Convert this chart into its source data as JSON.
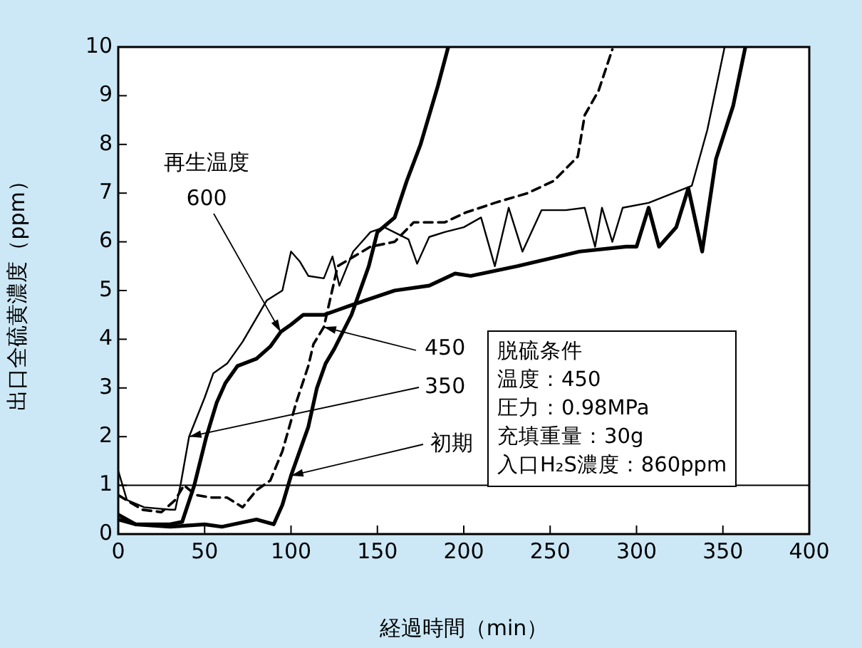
{
  "chart_data": {
    "type": "line",
    "xlabel": "経過時間（min）",
    "ylabel": "出口全硫黄濃度（ppm）",
    "xlim": [
      0,
      400
    ],
    "xticks": [
      0,
      50,
      100,
      150,
      200,
      250,
      300,
      350,
      400
    ],
    "ylim": [
      0,
      10
    ],
    "yticks": [
      0,
      1,
      2,
      3,
      4,
      5,
      6,
      7,
      8,
      9,
      10
    ],
    "grid": false,
    "legend": false,
    "marker": "none",
    "ref_lines": [
      {
        "axis": "y",
        "value": 1,
        "color": "#000000"
      }
    ],
    "annotations": [
      "再生温度",
      "脱硫条件",
      "温度：450",
      "圧力：0.98MPa",
      "充填重量：30g",
      "入口H₂S濃度：860ppm",
      {
        "text": "600",
        "x": 94,
        "y": 4.15
      },
      {
        "text": "450",
        "x": 119,
        "y": 4.25
      },
      {
        "text": "350",
        "x": 41,
        "y": 2.0
      },
      {
        "text": "初期",
        "x": 100,
        "y": 1.2
      }
    ],
    "series": [
      {
        "color": "#000000",
        "line_style": "solid",
        "x": [
          0,
          10,
          30,
          37,
          44,
          51,
          57,
          62,
          69,
          80,
          88,
          94,
          100,
          107,
          119,
          127,
          135,
          160,
          180,
          195,
          204,
          231,
          267,
          294,
          300,
          307,
          313,
          323,
          330,
          338,
          346,
          356,
          363
        ],
        "values": [
          0.4,
          0.2,
          0.2,
          0.25,
          1.0,
          2.0,
          2.7,
          3.1,
          3.45,
          3.6,
          3.85,
          4.15,
          4.3,
          4.5,
          4.5,
          4.6,
          4.7,
          5.0,
          5.1,
          5.35,
          5.3,
          5.5,
          5.8,
          5.9,
          5.9,
          6.7,
          5.9,
          6.3,
          7.1,
          5.8,
          7.7,
          8.8,
          10
        ]
      },
      {
        "color": "#000000",
        "line_style": "dashed",
        "x": [
          0,
          14,
          25,
          33,
          38,
          45,
          54,
          63,
          72,
          80,
          88,
          95,
          103,
          110,
          113,
          119,
          127,
          146,
          160,
          171,
          189,
          201,
          218,
          237,
          252,
          266,
          270,
          278,
          286
        ],
        "values": [
          0.8,
          0.5,
          0.45,
          0.7,
          1.0,
          0.8,
          0.75,
          0.75,
          0.55,
          0.9,
          1.1,
          1.7,
          2.7,
          3.45,
          3.9,
          4.25,
          5.5,
          5.9,
          6.0,
          6.4,
          6.4,
          6.6,
          6.8,
          7.0,
          7.25,
          7.75,
          8.6,
          9.1,
          9.95
        ]
      },
      {
        "color": "#000000",
        "line_style": "solid",
        "x": [
          0,
          5,
          15,
          30,
          33,
          36,
          41,
          50,
          55,
          63,
          72,
          86,
          95,
          100,
          105,
          110,
          119,
          124,
          128,
          136,
          146,
          154,
          168,
          173,
          180,
          189,
          200,
          210,
          218,
          226,
          234,
          245,
          259,
          270,
          276,
          280,
          286,
          292,
          307,
          332,
          341,
          351
        ],
        "values": [
          1.3,
          0.7,
          0.55,
          0.5,
          0.5,
          1.0,
          2.0,
          2.8,
          3.3,
          3.5,
          3.95,
          4.8,
          5.0,
          5.8,
          5.6,
          5.3,
          5.25,
          5.7,
          5.1,
          5.8,
          6.2,
          6.3,
          6.05,
          5.55,
          6.1,
          6.2,
          6.3,
          6.5,
          5.5,
          6.7,
          5.8,
          6.65,
          6.65,
          6.7,
          5.9,
          6.7,
          6.0,
          6.7,
          6.8,
          7.15,
          8.3,
          10
        ]
      },
      {
        "color": "#000000",
        "line_style": "solid",
        "x": [
          0,
          10,
          30,
          50,
          60,
          80,
          90,
          95,
          100,
          110,
          115,
          120,
          125,
          135,
          145,
          150,
          160,
          167,
          175,
          185,
          191
        ],
        "values": [
          0.3,
          0.2,
          0.15,
          0.2,
          0.15,
          0.3,
          0.2,
          0.6,
          1.2,
          2.2,
          3.0,
          3.5,
          3.8,
          4.5,
          5.5,
          6.2,
          6.5,
          7.25,
          8.0,
          9.2,
          10
        ]
      }
    ]
  }
}
